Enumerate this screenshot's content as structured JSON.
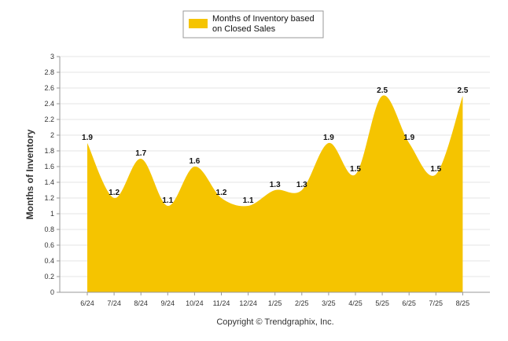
{
  "chart_data": {
    "type": "area",
    "categories": [
      "6/24",
      "7/24",
      "8/24",
      "9/24",
      "10/24",
      "11/24",
      "12/24",
      "1/25",
      "2/25",
      "3/25",
      "4/25",
      "5/25",
      "6/25",
      "7/25",
      "8/25"
    ],
    "series": [
      {
        "name_lines": [
          "Months of Inventory based",
          "on Closed Sales"
        ],
        "values": [
          1.9,
          1.2,
          1.7,
          1.1,
          1.6,
          1.2,
          1.1,
          1.3,
          1.3,
          1.9,
          1.5,
          2.5,
          1.9,
          1.5,
          2.5
        ],
        "value_labels": [
          "1.9",
          "1.2",
          "1.7",
          "1.1",
          "1.6",
          "1.2",
          "1.1",
          "1.3",
          "1.3",
          "1.9",
          "1.5",
          "2.5",
          "1.9",
          "1.5",
          "2.5"
        ]
      }
    ],
    "ylabel": "Months of Inventory",
    "ylim": [
      0,
      3
    ],
    "yticks": [
      "0",
      "0.2",
      "0.4",
      "0.6",
      "0.8",
      "1",
      "1.2",
      "1.4",
      "1.6",
      "1.8",
      "2",
      "2.2",
      "2.4",
      "2.6",
      "2.8",
      "3"
    ],
    "grid": true,
    "legend_position": "top-center"
  },
  "colors": {
    "area": "#F5C400",
    "grid": "#E6E6E6"
  },
  "footer": {
    "copyright": "Copyright © Trendgraphix, Inc."
  }
}
